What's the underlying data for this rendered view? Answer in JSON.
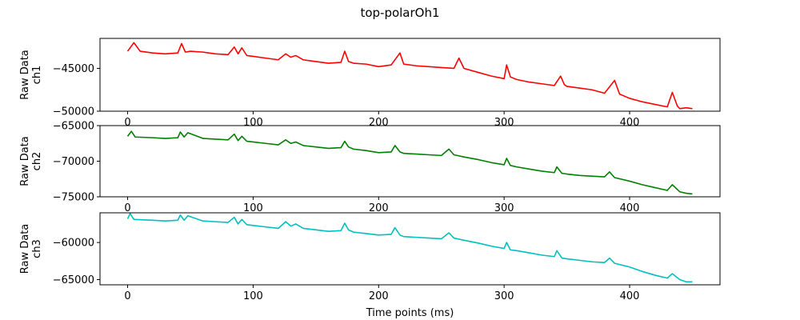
{
  "figure": {
    "title": "top-polarOh1"
  },
  "chart_data": [
    {
      "type": "line",
      "title": "top-polarOh1",
      "xlabel": "",
      "ylabel": [
        "Raw Data",
        "ch1"
      ],
      "xlim": [
        -22,
        472
      ],
      "ylim": [
        -50000,
        -41500
      ],
      "xticks": [
        0,
        100,
        200,
        300,
        400
      ],
      "yticks": [
        -45000,
        -50000
      ],
      "ytick_labels": [
        "−45000",
        "−50000"
      ],
      "grid": false,
      "color": "#ff0000",
      "series": [
        {
          "x": [
            0,
            5,
            10,
            20,
            30,
            40,
            43,
            46,
            50,
            60,
            70,
            80,
            85,
            88,
            91,
            95,
            100,
            110,
            120,
            126,
            130,
            134,
            140,
            150,
            160,
            170,
            173,
            176,
            180,
            190,
            200,
            210,
            217,
            220,
            230,
            240,
            250,
            260,
            264,
            268,
            280,
            290,
            300,
            302,
            305,
            310,
            320,
            330,
            340,
            345,
            348,
            350,
            360,
            370,
            380,
            388,
            392,
            400,
            410,
            420,
            430,
            434,
            438,
            440,
            445,
            450
          ],
          "y": [
            -43000,
            -42000,
            -43000,
            -43200,
            -43300,
            -43200,
            -42100,
            -43100,
            -43000,
            -43100,
            -43300,
            -43400,
            -42500,
            -43300,
            -42600,
            -43500,
            -43600,
            -43800,
            -44000,
            -43300,
            -43700,
            -43500,
            -44000,
            -44200,
            -44400,
            -44300,
            -43000,
            -44200,
            -44400,
            -44500,
            -44800,
            -44600,
            -43200,
            -44500,
            -44700,
            -44800,
            -44900,
            -45000,
            -43800,
            -45000,
            -45500,
            -45900,
            -46200,
            -44600,
            -46000,
            -46300,
            -46600,
            -46800,
            -47000,
            -45900,
            -46900,
            -47100,
            -47300,
            -47500,
            -47900,
            -46400,
            -48000,
            -48500,
            -48900,
            -49200,
            -49500,
            -47800,
            -49400,
            -49700,
            -49600,
            -49700
          ]
        }
      ]
    },
    {
      "type": "line",
      "xlabel": "",
      "ylabel": [
        "Raw Data",
        "ch2"
      ],
      "xlim": [
        -22,
        472
      ],
      "ylim": [
        -75000,
        -65000
      ],
      "xticks": [
        0,
        100,
        200,
        300,
        400
      ],
      "yticks": [
        -65000,
        -70000,
        -75000
      ],
      "ytick_labels": [
        "−65000",
        "−70000",
        "−75000"
      ],
      "grid": false,
      "color": "#008000",
      "series": [
        {
          "x": [
            0,
            3,
            6,
            20,
            30,
            40,
            42,
            45,
            48,
            60,
            70,
            80,
            85,
            88,
            91,
            95,
            100,
            110,
            120,
            126,
            130,
            134,
            140,
            150,
            160,
            170,
            173,
            176,
            180,
            190,
            200,
            210,
            213,
            217,
            220,
            230,
            240,
            250,
            256,
            260,
            268,
            280,
            290,
            300,
            302,
            305,
            310,
            320,
            330,
            340,
            342,
            346,
            350,
            360,
            370,
            380,
            384,
            388,
            400,
            410,
            420,
            430,
            434,
            440,
            445,
            450
          ],
          "y": [
            -66500,
            -65800,
            -66600,
            -66700,
            -66800,
            -66700,
            -65900,
            -66600,
            -66000,
            -66800,
            -66900,
            -67000,
            -66200,
            -67100,
            -66500,
            -67200,
            -67300,
            -67500,
            -67700,
            -67000,
            -67500,
            -67300,
            -67800,
            -68000,
            -68200,
            -68100,
            -67200,
            -68000,
            -68300,
            -68500,
            -68800,
            -68700,
            -67800,
            -68700,
            -68900,
            -69000,
            -69100,
            -69200,
            -68300,
            -69100,
            -69400,
            -69800,
            -70200,
            -70500,
            -69600,
            -70600,
            -70800,
            -71100,
            -71400,
            -71600,
            -70800,
            -71700,
            -71800,
            -72000,
            -72100,
            -72200,
            -71500,
            -72300,
            -72800,
            -73300,
            -73700,
            -74100,
            -73300,
            -74300,
            -74500,
            -74600
          ]
        }
      ]
    },
    {
      "type": "line",
      "xlabel": "Time points (ms)",
      "ylabel": [
        "Raw Data",
        "ch3"
      ],
      "xlim": [
        -22,
        472
      ],
      "ylim": [
        -65700,
        -56000
      ],
      "xticks": [
        0,
        100,
        200,
        300,
        400
      ],
      "yticks": [
        -60000,
        -65000
      ],
      "ytick_labels": [
        "−60000",
        "−65000"
      ],
      "grid": false,
      "color": "#00bfbf",
      "series": [
        {
          "x": [
            0,
            2,
            5,
            20,
            30,
            40,
            42,
            45,
            48,
            60,
            70,
            80,
            85,
            88,
            91,
            95,
            100,
            110,
            120,
            126,
            130,
            134,
            140,
            150,
            160,
            170,
            173,
            176,
            180,
            190,
            200,
            210,
            213,
            217,
            220,
            230,
            240,
            250,
            256,
            260,
            268,
            280,
            290,
            300,
            302,
            305,
            310,
            320,
            330,
            340,
            342,
            346,
            350,
            360,
            370,
            380,
            384,
            388,
            400,
            410,
            420,
            430,
            434,
            440,
            445,
            450
          ],
          "y": [
            -56800,
            -56100,
            -56900,
            -57000,
            -57100,
            -57000,
            -56300,
            -57000,
            -56400,
            -57100,
            -57200,
            -57300,
            -56600,
            -57500,
            -56900,
            -57600,
            -57700,
            -57900,
            -58100,
            -57200,
            -57800,
            -57500,
            -58100,
            -58300,
            -58500,
            -58400,
            -57400,
            -58300,
            -58600,
            -58800,
            -59000,
            -58900,
            -58000,
            -59000,
            -59200,
            -59300,
            -59400,
            -59500,
            -58700,
            -59400,
            -59700,
            -60100,
            -60500,
            -60800,
            -60000,
            -61000,
            -61100,
            -61400,
            -61700,
            -61900,
            -61100,
            -62100,
            -62200,
            -62400,
            -62600,
            -62700,
            -62100,
            -62800,
            -63300,
            -63900,
            -64400,
            -64800,
            -64200,
            -65000,
            -65300,
            -65300
          ]
        }
      ]
    }
  ]
}
